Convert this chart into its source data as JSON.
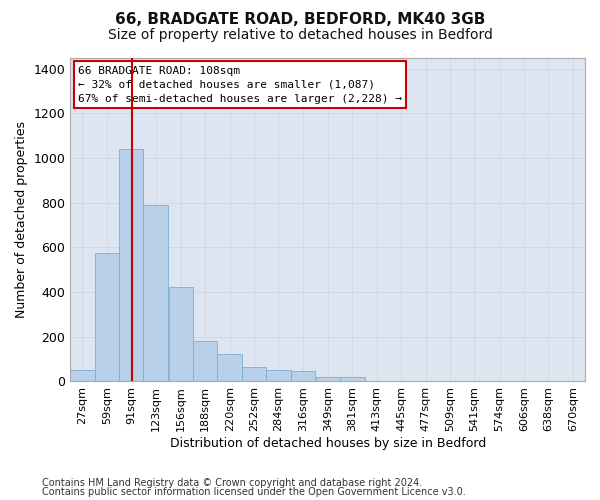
{
  "title_line1": "66, BRADGATE ROAD, BEDFORD, MK40 3GB",
  "title_line2": "Size of property relative to detached houses in Bedford",
  "xlabel": "Distribution of detached houses by size in Bedford",
  "ylabel": "Number of detached properties",
  "footnote1": "Contains HM Land Registry data © Crown copyright and database right 2024.",
  "footnote2": "Contains public sector information licensed under the Open Government Licence v3.0.",
  "annotation_line1": "66 BRADGATE ROAD: 108sqm",
  "annotation_line2": "← 32% of detached houses are smaller (1,087)",
  "annotation_line3": "67% of semi-detached houses are larger (2,228) →",
  "bar_color": "#b8d0ea",
  "bar_edge_color": "#7aadd4",
  "vline_color": "#cc0000",
  "vline_x": 108,
  "categories": [
    "27sqm",
    "59sqm",
    "91sqm",
    "123sqm",
    "156sqm",
    "188sqm",
    "220sqm",
    "252sqm",
    "284sqm",
    "316sqm",
    "349sqm",
    "381sqm",
    "413sqm",
    "445sqm",
    "477sqm",
    "509sqm",
    "541sqm",
    "574sqm",
    "606sqm",
    "638sqm",
    "670sqm"
  ],
  "bin_left_edges": [
    27,
    59,
    91,
    123,
    156,
    188,
    220,
    252,
    284,
    316,
    349,
    381,
    413,
    445,
    477,
    509,
    541,
    574,
    606,
    638,
    670
  ],
  "bin_width": 32,
  "values": [
    50,
    575,
    1040,
    790,
    425,
    180,
    125,
    65,
    50,
    45,
    22,
    20,
    0,
    0,
    0,
    0,
    0,
    0,
    0,
    0,
    0
  ],
  "ylim": [
    0,
    1450
  ],
  "yticks": [
    0,
    200,
    400,
    600,
    800,
    1000,
    1200,
    1400
  ],
  "grid_color": "#d0d8e8",
  "plot_bg_color": "#dde5f0",
  "fig_bg_color": "#ffffff",
  "annotation_box_color": "#ffffff",
  "annotation_box_edge": "#cc0000",
  "title1_fontsize": 11,
  "title2_fontsize": 10,
  "ylabel_fontsize": 9,
  "xlabel_fontsize": 9,
  "ytick_fontsize": 9,
  "xtick_fontsize": 8,
  "annot_fontsize": 8,
  "footnote_fontsize": 7
}
